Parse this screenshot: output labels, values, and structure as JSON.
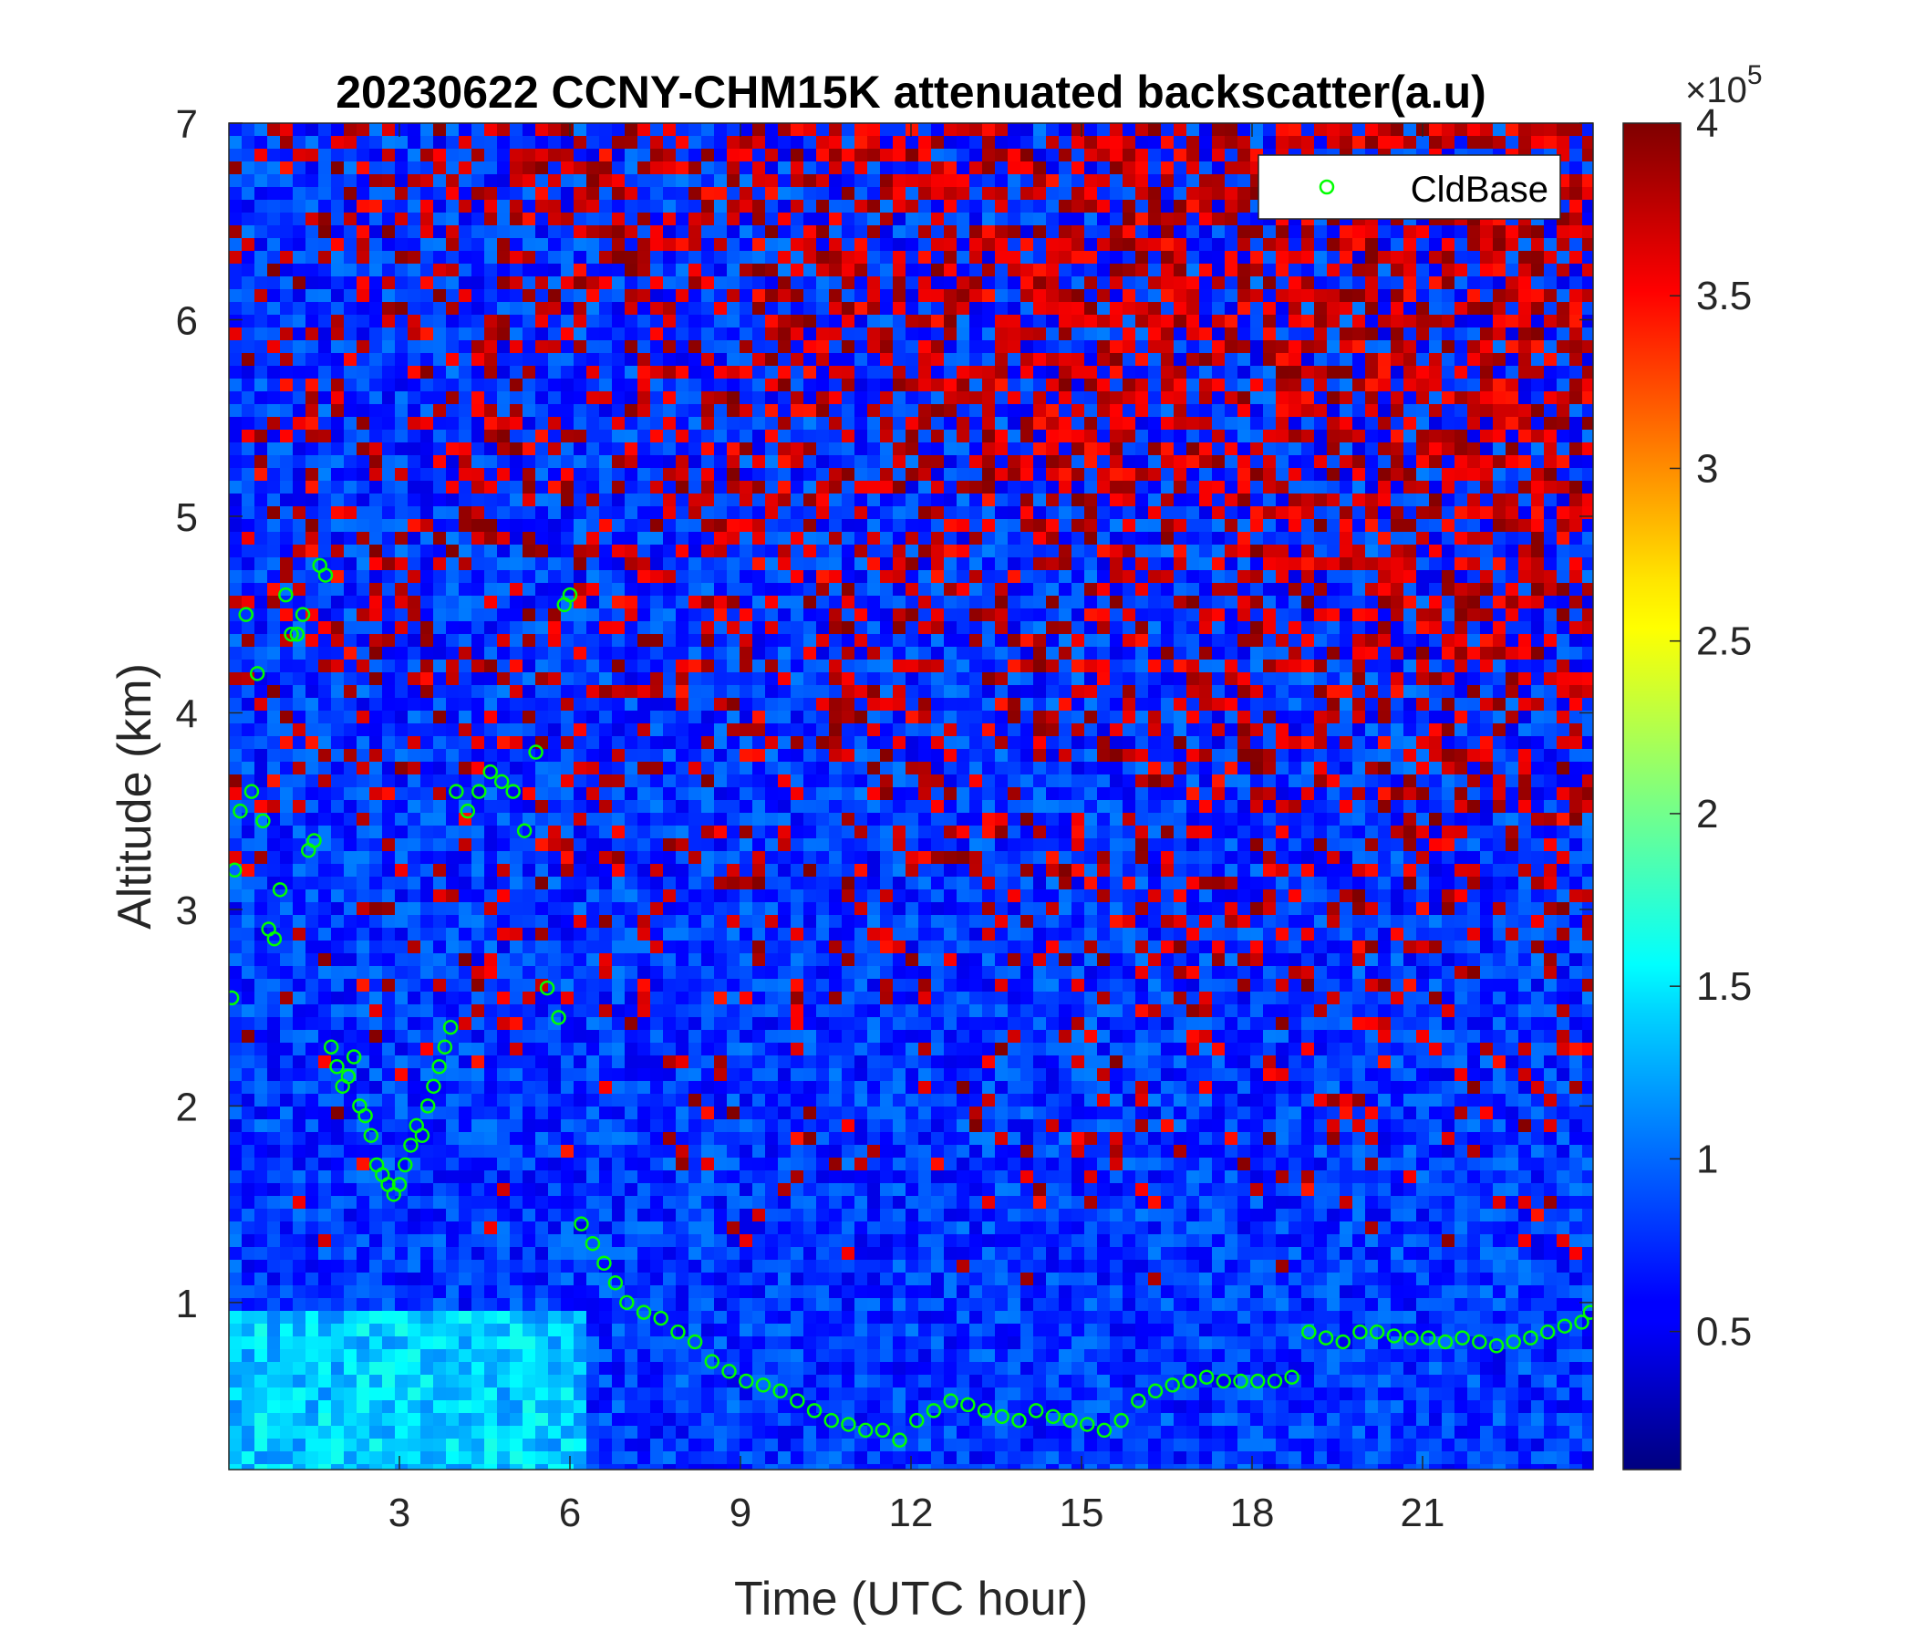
{
  "chart_data": {
    "type": "heatmap",
    "title": "20230622 CCNY-CHM15K attenuated backscatter(a.u)",
    "xlabel": "Time (UTC hour)",
    "ylabel": "Altitude (km)",
    "xlim": [
      0,
      24
    ],
    "ylim": [
      0.15,
      7
    ],
    "x_ticks": [
      3,
      6,
      9,
      12,
      15,
      18,
      21
    ],
    "x_tick_labels": [
      "3",
      "6",
      "9",
      "12",
      "15",
      "18",
      "21"
    ],
    "y_ticks": [
      1,
      2,
      3,
      4,
      5,
      6,
      7
    ],
    "y_tick_labels": [
      "1",
      "2",
      "3",
      "4",
      "5",
      "6",
      "7"
    ],
    "colormap": "jet",
    "colorbar": {
      "range": [
        0.1,
        4
      ],
      "ticks": [
        0.5,
        1,
        1.5,
        2,
        2.5,
        3,
        3.5,
        4
      ],
      "tick_labels": [
        "0.5",
        "1",
        "1.5",
        "2",
        "2.5",
        "3",
        "3.5",
        "4"
      ],
      "multiplier_base": "×10",
      "multiplier_exponent": "5"
    },
    "legend": {
      "position": "top-right",
      "entries": [
        "CldBase"
      ]
    },
    "series": [
      {
        "name": "CldBase",
        "type": "scatter",
        "marker": "open-circle",
        "color": "#00ff00",
        "x": [
          0.05,
          0.1,
          0.2,
          0.3,
          0.4,
          0.5,
          0.6,
          0.7,
          0.8,
          0.9,
          1.0,
          1.1,
          1.2,
          1.3,
          1.4,
          1.5,
          1.6,
          1.7,
          1.8,
          1.9,
          2.0,
          2.1,
          2.2,
          2.3,
          2.4,
          2.5,
          2.6,
          2.7,
          2.8,
          2.9,
          3.0,
          3.1,
          3.2,
          3.3,
          3.4,
          3.5,
          3.6,
          3.7,
          3.8,
          3.9,
          4.0,
          4.2,
          4.4,
          4.6,
          4.8,
          5.0,
          5.2,
          5.4,
          5.6,
          5.8,
          5.9,
          6.0,
          6.2,
          6.4,
          6.6,
          6.8,
          7.0,
          7.3,
          7.6,
          7.9,
          8.2,
          8.5,
          8.8,
          9.1,
          9.4,
          9.7,
          10.0,
          10.3,
          10.6,
          10.9,
          11.2,
          11.5,
          11.8,
          12.1,
          12.4,
          12.7,
          13.0,
          13.3,
          13.6,
          13.9,
          14.2,
          14.5,
          14.8,
          15.1,
          15.4,
          15.7,
          16.0,
          16.3,
          16.6,
          16.9,
          17.2,
          17.5,
          17.8,
          18.1,
          18.4,
          18.7,
          19.0,
          19.3,
          19.6,
          19.9,
          20.2,
          20.5,
          20.8,
          21.1,
          21.4,
          21.7,
          22.0,
          22.3,
          22.6,
          22.9,
          23.2,
          23.5,
          23.8,
          23.95
        ],
        "y": [
          2.55,
          3.2,
          3.5,
          4.5,
          3.6,
          4.2,
          3.45,
          2.9,
          2.85,
          3.1,
          4.6,
          4.4,
          4.4,
          4.5,
          3.3,
          3.35,
          4.75,
          4.7,
          2.3,
          2.2,
          2.1,
          2.15,
          2.25,
          2.0,
          1.95,
          1.85,
          1.7,
          1.65,
          1.6,
          1.55,
          1.6,
          1.7,
          1.8,
          1.9,
          1.85,
          2.0,
          2.1,
          2.2,
          2.3,
          2.4,
          3.6,
          3.5,
          3.6,
          3.7,
          3.65,
          3.6,
          3.4,
          3.8,
          2.6,
          2.45,
          4.55,
          4.6,
          1.4,
          1.3,
          1.2,
          1.1,
          1.0,
          0.95,
          0.92,
          0.85,
          0.8,
          0.7,
          0.65,
          0.6,
          0.58,
          0.55,
          0.5,
          0.45,
          0.4,
          0.38,
          0.35,
          0.35,
          0.3,
          0.4,
          0.45,
          0.5,
          0.48,
          0.45,
          0.42,
          0.4,
          0.45,
          0.42,
          0.4,
          0.38,
          0.35,
          0.4,
          0.5,
          0.55,
          0.58,
          0.6,
          0.62,
          0.6,
          0.6,
          0.6,
          0.6,
          0.62,
          0.85,
          0.82,
          0.8,
          0.85,
          0.85,
          0.83,
          0.82,
          0.82,
          0.8,
          0.82,
          0.8,
          0.78,
          0.8,
          0.82,
          0.85,
          0.88,
          0.9,
          0.95
        ]
      }
    ]
  }
}
